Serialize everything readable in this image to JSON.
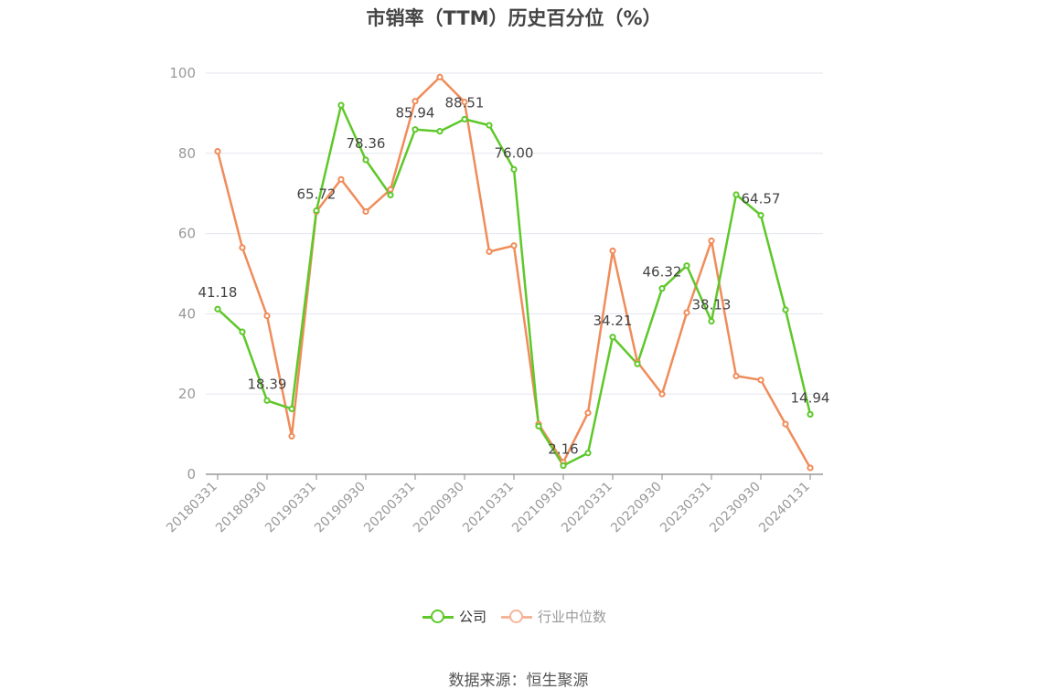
{
  "title": "市销率（TTM）历史百分位（%）",
  "source": "数据来源：恒生聚源",
  "colors": {
    "company": "#5ec82a",
    "industry": "#f08c5a",
    "industry_legend": "#f5b59a",
    "grid": "#e3e6ee",
    "axis": "#999999"
  },
  "chart_data": {
    "type": "line",
    "title": "市销率（TTM）历史百分位（%）",
    "ylim": [
      0,
      100
    ],
    "yticks": [
      0,
      20,
      40,
      60,
      80,
      100
    ],
    "xtick_labels": [
      "20180331",
      "20180930",
      "20190331",
      "20190930",
      "20200331",
      "20200930",
      "20210331",
      "20210930",
      "20220331",
      "20220930",
      "20230331",
      "20230930",
      "20240131"
    ],
    "legend_position": "bottom",
    "grid": true,
    "x": [
      "20180331",
      "20180630",
      "20180930",
      "20181231",
      "20190331",
      "20190630",
      "20190930",
      "20191231",
      "20200331",
      "20200630",
      "20200930",
      "20201231",
      "20210331",
      "20210630",
      "20210930",
      "20211231",
      "20220331",
      "20220630",
      "20220930",
      "20221231",
      "20230331",
      "20230630",
      "20230930",
      "20231231",
      "20240131"
    ],
    "series": [
      {
        "name": "公司",
        "values": [
          41.18,
          35.5,
          18.39,
          16.3,
          65.72,
          92.0,
          78.36,
          69.6,
          85.94,
          85.5,
          88.51,
          87.0,
          76.0,
          12.0,
          2.16,
          5.3,
          34.21,
          27.5,
          46.32,
          52.0,
          38.13,
          69.7,
          64.57,
          41.0,
          14.94
        ],
        "labels": {
          "0": "41.18",
          "2": "18.39",
          "4": "65.72",
          "6": "78.36",
          "8": "85.94",
          "10": "88.51",
          "12": "76.00",
          "14": "2.16",
          "16": "34.21",
          "18": "46.32",
          "20": "38.13",
          "22": "64.57",
          "24": "14.94"
        }
      },
      {
        "name": "行业中位数",
        "values": [
          80.5,
          56.5,
          39.5,
          9.5,
          65.5,
          73.5,
          65.5,
          71.0,
          93.0,
          99.0,
          92.8,
          55.5,
          57.0,
          12.5,
          3.0,
          15.3,
          55.7,
          28.0,
          20.0,
          40.3,
          58.2,
          24.5,
          23.5,
          12.5,
          1.6
        ]
      }
    ]
  }
}
